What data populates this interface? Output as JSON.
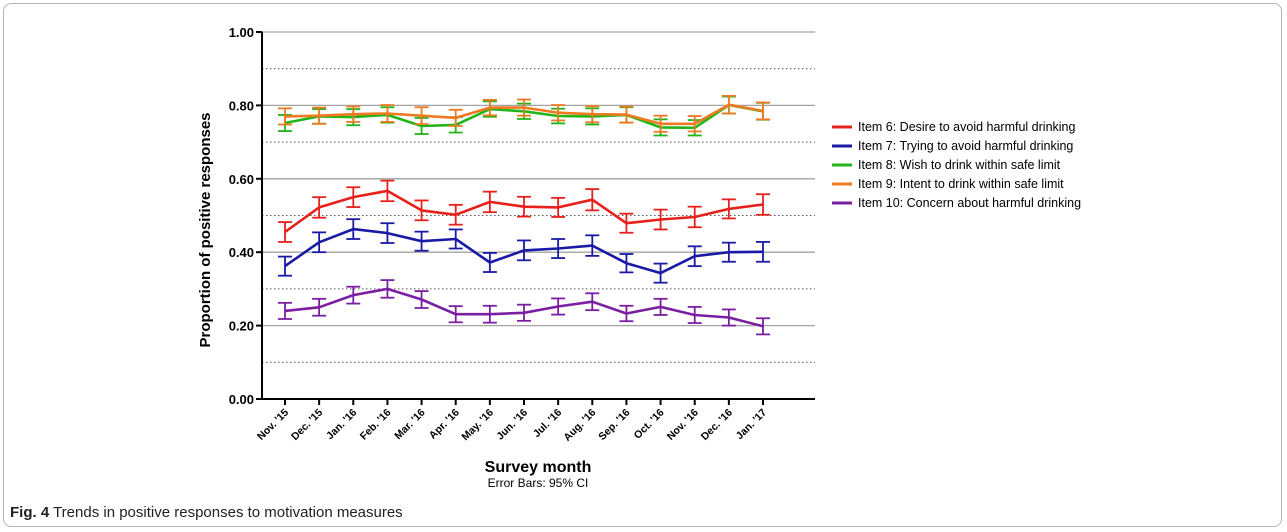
{
  "chart_data": {
    "type": "line",
    "xlabel": "Survey month",
    "xlabel_sub": "Error Bars: 95% CI",
    "ylabel": "Proportion of positive responses",
    "ylim": [
      0,
      1
    ],
    "yticks": [
      "0.00",
      "0.20",
      "0.40",
      "0.60",
      "0.80",
      "1.00"
    ],
    "grid": "solid gridlines at 0.20 steps, dotted gridlines at 0.10/0.30/0.50/0.70/0.90",
    "legend_position": "right",
    "categories": [
      "Nov. '15",
      "Dec. '15",
      "Jan. '16",
      "Feb. '16",
      "Mar. '16",
      "Apr. '16",
      "May. '16",
      "Jun. '16",
      "Jul. '16",
      "Aug. '16",
      "Sep. '16",
      "Oct. '16",
      "Nov. '16",
      "Dec. '16",
      "Jan. '17"
    ],
    "series": [
      {
        "name": "Item 6: Desire to avoid harmful drinking",
        "color": "#e8201c",
        "values": [
          0.455,
          0.522,
          0.55,
          0.567,
          0.514,
          0.502,
          0.537,
          0.524,
          0.522,
          0.543,
          0.479,
          0.489,
          0.496,
          0.518,
          0.53
        ],
        "err": [
          0.027,
          0.028,
          0.027,
          0.028,
          0.027,
          0.027,
          0.028,
          0.027,
          0.026,
          0.029,
          0.026,
          0.027,
          0.028,
          0.026,
          0.028
        ]
      },
      {
        "name": "Item 7: Trying to avoid harmful drinking",
        "color": "#1a1aa6",
        "values": [
          0.362,
          0.427,
          0.463,
          0.452,
          0.43,
          0.436,
          0.372,
          0.405,
          0.41,
          0.418,
          0.37,
          0.343,
          0.389,
          0.4,
          0.401
        ],
        "err": [
          0.026,
          0.027,
          0.027,
          0.027,
          0.026,
          0.026,
          0.026,
          0.027,
          0.026,
          0.028,
          0.025,
          0.026,
          0.027,
          0.026,
          0.027
        ]
      },
      {
        "name": "Item 8: Wish to drink within safe limit",
        "color": "#22b519",
        "values": [
          0.752,
          0.77,
          0.768,
          0.774,
          0.744,
          0.747,
          0.79,
          0.784,
          0.771,
          0.77,
          0.774,
          0.74,
          0.739,
          0.801,
          0.784
        ],
        "err": [
          0.022,
          0.02,
          0.022,
          0.021,
          0.022,
          0.021,
          0.021,
          0.021,
          0.02,
          0.022,
          0.021,
          0.022,
          0.021,
          0.023,
          0.023
        ]
      },
      {
        "name": "Item 9: Intent to drink within safe limit",
        "color": "#f07a22",
        "values": [
          0.77,
          0.772,
          0.776,
          0.778,
          0.772,
          0.766,
          0.794,
          0.794,
          0.78,
          0.776,
          0.775,
          0.75,
          0.75,
          0.802,
          0.785
        ],
        "err": [
          0.022,
          0.022,
          0.021,
          0.023,
          0.023,
          0.022,
          0.021,
          0.022,
          0.021,
          0.022,
          0.022,
          0.022,
          0.021,
          0.024,
          0.023
        ]
      },
      {
        "name": "Item 10: Concern about harmful drinking",
        "color": "#7a1fa2",
        "values": [
          0.24,
          0.25,
          0.283,
          0.3,
          0.271,
          0.231,
          0.231,
          0.235,
          0.252,
          0.265,
          0.233,
          0.251,
          0.229,
          0.222,
          0.198
        ],
        "err": [
          0.022,
          0.023,
          0.023,
          0.024,
          0.023,
          0.022,
          0.023,
          0.022,
          0.022,
          0.023,
          0.021,
          0.022,
          0.022,
          0.022,
          0.022
        ]
      }
    ]
  },
  "caption": {
    "label": "Fig. 4",
    "text": "Trends in positive responses to motivation measures"
  }
}
